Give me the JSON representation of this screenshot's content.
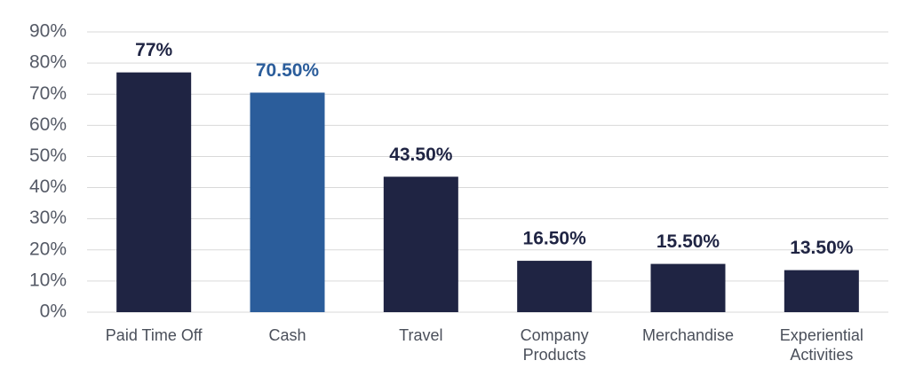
{
  "chart_data": {
    "type": "bar",
    "categories": [
      "Paid Time Off",
      "Cash",
      "Travel",
      "Company Products",
      "Merchandise",
      "Experiential Activities"
    ],
    "values": [
      77,
      70.5,
      43.5,
      16.5,
      15.5,
      13.5
    ],
    "value_labels": [
      "77%",
      "70.50%",
      "43.50%",
      "16.50%",
      "15.50%",
      "13.50%"
    ],
    "colors": [
      "#1f2443",
      "#2b5d9b",
      "#1f2443",
      "#1f2443",
      "#1f2443",
      "#1f2443"
    ],
    "ylim": [
      0,
      90
    ],
    "yticks": [
      {
        "value": 0,
        "label": "0%"
      },
      {
        "value": 10,
        "label": "10%"
      },
      {
        "value": 20,
        "label": "20%"
      },
      {
        "value": 30,
        "label": "30%"
      },
      {
        "value": 40,
        "label": "40%"
      },
      {
        "value": 50,
        "label": "50%"
      },
      {
        "value": 60,
        "label": "60%"
      },
      {
        "value": 70,
        "label": "70%"
      },
      {
        "value": 80,
        "label": "80%"
      },
      {
        "value": 90,
        "label": "90%"
      }
    ],
    "grid": true
  }
}
